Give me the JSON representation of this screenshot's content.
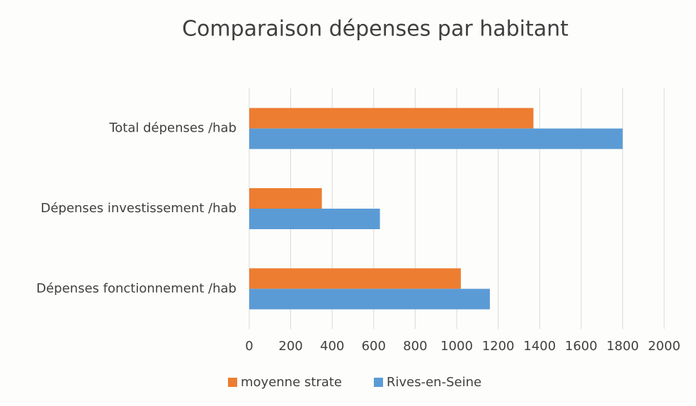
{
  "chart_data": {
    "type": "hbar",
    "title": "Comparaison dépenses par habitant",
    "categories": [
      "Total dépenses /hab",
      "Dépenses investissement /hab",
      "Dépenses fonctionnement /hab"
    ],
    "series": [
      {
        "name": "moyenne strate",
        "color": "#ed7d31",
        "values": [
          1370,
          350,
          1020
        ]
      },
      {
        "name": "Rives-en-Seine",
        "color": "#5b9bd5",
        "values": [
          1800,
          630,
          1160
        ]
      }
    ],
    "xlim": [
      0,
      2000
    ],
    "xticks": [
      0,
      200,
      400,
      600,
      800,
      1000,
      1200,
      1400,
      1600,
      1800,
      2000
    ],
    "grid": true,
    "legend": "bottom"
  }
}
